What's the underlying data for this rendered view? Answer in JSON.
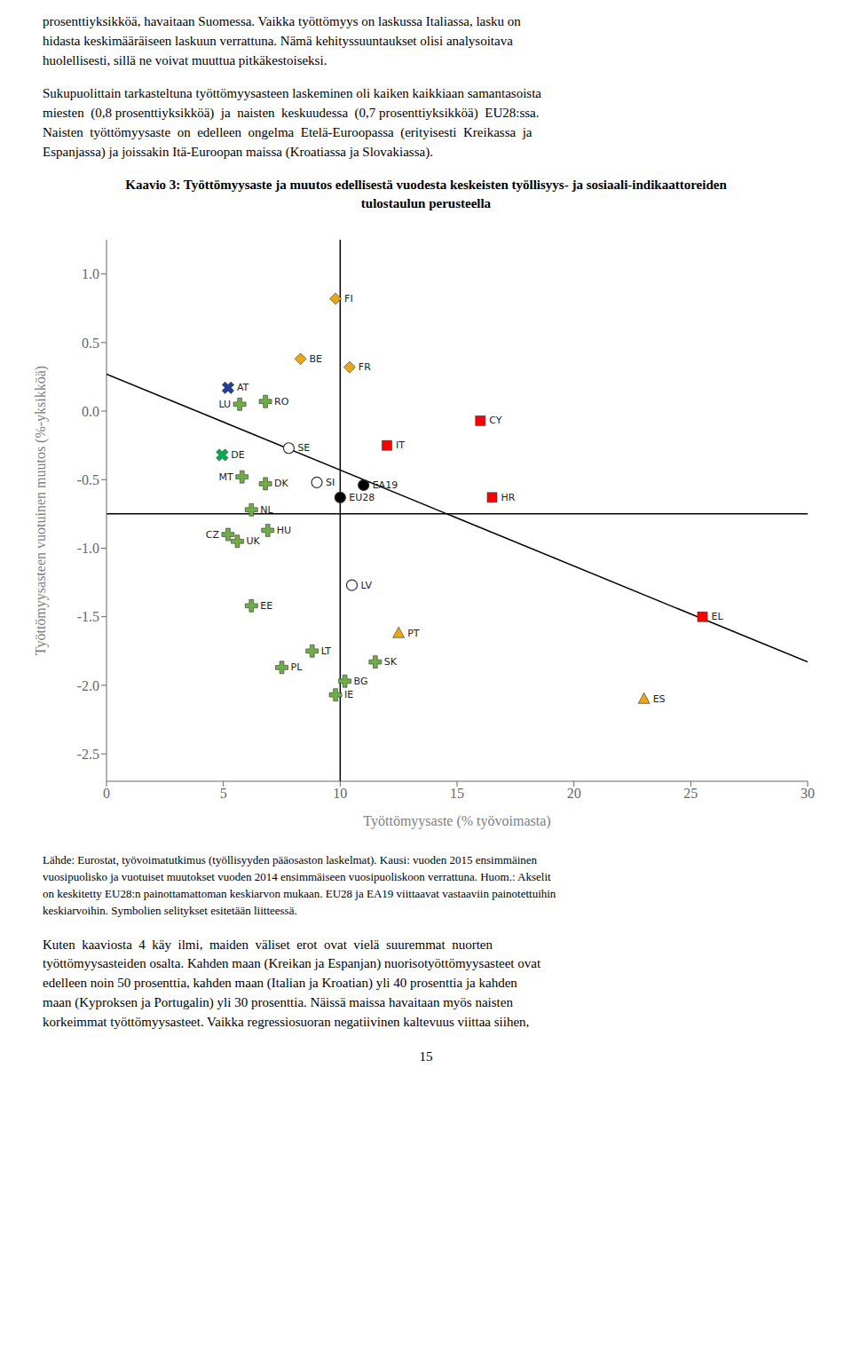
{
  "chart_data": {
    "type": "scatter",
    "title": "Kaavio 3: Työttömyysaste ja muutos edellisestä vuodesta keskeisten työllisyys- ja sosiaali-indikaattoreiden tulostaulun perusteella",
    "xlabel": "Työttömyysaste (% työvoimasta)",
    "ylabel": "Työttömyysasteen vuotuinen muutos (%-yksikköä)",
    "xlim": [
      0,
      30
    ],
    "ylim": [
      -2.7,
      1.25
    ],
    "xticks": [
      0,
      5,
      10,
      15,
      20,
      25,
      30
    ],
    "yticks": [
      -2.5,
      {
        "value": -2.0,
        "label": "-2.0"
      },
      -1.5,
      {
        "value": -1.0,
        "label": "-1.0"
      },
      -0.5,
      {
        "value": 0.0,
        "label": "0.0"
      },
      0.5,
      {
        "value": 1.0,
        "label": "1.0"
      }
    ],
    "grid": false,
    "x": [
      5.2,
      8.3,
      10.2,
      16.0,
      5.2,
      4.95,
      6.8,
      11.0,
      6.2,
      25.5,
      23.0,
      10.0,
      9.8,
      10.4,
      16.5,
      6.9,
      9.8,
      12.0,
      8.8,
      5.7,
      10.5,
      5.8,
      6.2,
      7.5,
      12.5,
      6.8,
      7.8,
      9.0,
      11.5,
      5.6
    ],
    "values": [
      0.17,
      0.38,
      -1.97,
      -0.07,
      -0.9,
      -0.32,
      -0.53,
      -0.54,
      -1.42,
      -1.5,
      -2.1,
      -0.63,
      0.82,
      0.32,
      -0.63,
      -0.87,
      -2.07,
      -0.25,
      -1.75,
      0.05,
      -1.27,
      -0.48,
      -0.72,
      -1.87,
      -1.62,
      0.07,
      -0.27,
      -0.52,
      -1.83,
      -0.95
    ],
    "labels": [
      "AT",
      "BE",
      "BG",
      "CY",
      "CZ",
      "DE",
      "DK",
      "EA19",
      "EE",
      "EL",
      "ES",
      "EU28",
      "FI",
      "FR",
      "HR",
      "HU",
      "IE",
      "IT",
      "LT",
      "LU",
      "LV",
      "MT",
      "NL",
      "PL",
      "PT",
      "RO",
      "SE",
      "SI",
      "SK",
      "UK"
    ],
    "markers": [
      "x",
      "diamond",
      "plus",
      "square",
      "plus",
      "x",
      "plus",
      "circle",
      "plus",
      "square",
      "triangle",
      "circle",
      "diamond",
      "diamond",
      "square",
      "plus",
      "plus",
      "square",
      "plus",
      "plus",
      "circle",
      "plus",
      "plus",
      "plus",
      "triangle",
      "plus",
      "circle",
      "circle",
      "plus",
      "plus"
    ],
    "colors": [
      "#1F3D99",
      "#E6A817",
      "#70AD47",
      "#FF0000",
      "#70AD47",
      "#00B050",
      "#70AD47",
      "#000000",
      "#70AD47",
      "#FF0000",
      "#E6A817",
      "#000000",
      "#E6A817",
      "#E6A817",
      "#FF0000",
      "#70AD47",
      "#70AD47",
      "#FF0000",
      "#70AD47",
      "#70AD47",
      "#FFFFFF",
      "#70AD47",
      "#70AD47",
      "#70AD47",
      "#E6A817",
      "#70AD47",
      "#FFFFFF",
      "#FFFFFF",
      "#70AD47",
      "#70AD47"
    ],
    "axis_cross": {
      "x": 10.0,
      "y": -0.75,
      "color": "#000000"
    },
    "regression": {
      "x": [
        0,
        30
      ],
      "y": [
        0.27,
        -1.83
      ],
      "color": "#000000"
    },
    "text_above": [
      [
        "prosenttiyksikköä, havaitaan Suomessa. Vaikka työttömyys on laskussa Italiassa, lasku on",
        "hidasta keskimääräiseen laskuun verrattuna. Nämä kehityssuuntaukset olisi analysoitava",
        "huolellisesti, sillä ne voivat muuttua pitkäkestoiseksi."
      ],
      [
        "Sukupuolittain tarkasteltuna työttömyysasteen laskeminen oli kaiken kaikkiaan samantasoista",
        "miesten  (0,8 prosenttiyksikköä)  ja  naisten  keskuudessa  (0,7 prosenttiyksikköä)  EU28:ssa.",
        "Naisten  työttömyysaste  on  edelleen  ongelma  Etelä-Euroopassa  (erityisesti  Kreikassa  ja",
        "Espanjassa) ja joissakin Itä-Euroopan maissa (Kroatiassa ja Slovakiassa)."
      ]
    ],
    "source": [
      "Lähde: Eurostat, työvoimatutkimus (työllisyyden pääosaston laskelmat). Kausi: vuoden 2015 ensimmäinen",
      "vuosipuolisko ja vuotuiset muutokset vuoden 2014 ensimmäiseen vuosipuoliskoon verrattuna. Huom.: Akselit",
      "on keskitetty EU28:n painottamattoman keskiarvon mukaan. EU28 ja EA19 viittaavat vastaaviin painotettuihin",
      "keskiarvoihin. Symbolien selitykset esitetään liitteessä."
    ],
    "text_below": [
      "Kuten  kaaviosta  4  käy  ilmi,  maiden  väliset  erot  ovat  vielä  suuremmat  nuorten",
      "työttömyysasteiden osalta. Kahden maan (Kreikan ja Espanjan) nuorisotyöttömyysasteet ovat",
      "edelleen noin 50 prosenttia, kahden maan (Italian ja Kroatian) yli 40 prosenttia ja kahden",
      "maan (Kyproksen ja Portugalin) yli 30 prosenttia. Näissä maissa havaitaan myös naisten",
      "korkeimmat työttömyysasteet. Vaikka regressiosuoran negatiivinen kaltevuus viittaa siihen,"
    ],
    "page_number": "15"
  }
}
